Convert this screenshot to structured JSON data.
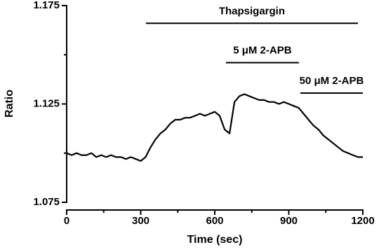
{
  "chart_data": {
    "type": "line",
    "xlabel": "Time (sec)",
    "ylabel": "Ratio",
    "x": [
      0,
      20,
      40,
      60,
      80,
      100,
      120,
      140,
      160,
      180,
      200,
      220,
      240,
      260,
      280,
      300,
      320,
      340,
      360,
      380,
      400,
      420,
      440,
      460,
      480,
      500,
      520,
      540,
      560,
      580,
      600,
      620,
      640,
      660,
      680,
      700,
      720,
      740,
      760,
      780,
      800,
      820,
      840,
      860,
      880,
      900,
      920,
      940,
      960,
      980,
      1000,
      1020,
      1040,
      1060,
      1080,
      1100,
      1120,
      1140,
      1160,
      1180,
      1200
    ],
    "series": [
      {
        "name": "Ratio",
        "color": "#000000",
        "values": [
          1.1,
          1.099,
          1.1,
          1.099,
          1.099,
          1.1,
          1.098,
          1.099,
          1.098,
          1.099,
          1.098,
          1.098,
          1.097,
          1.098,
          1.097,
          1.096,
          1.098,
          1.103,
          1.107,
          1.11,
          1.112,
          1.115,
          1.117,
          1.117,
          1.118,
          1.118,
          1.119,
          1.12,
          1.119,
          1.12,
          1.121,
          1.119,
          1.112,
          1.11,
          1.126,
          1.129,
          1.13,
          1.129,
          1.128,
          1.127,
          1.127,
          1.126,
          1.126,
          1.125,
          1.126,
          1.125,
          1.124,
          1.123,
          1.12,
          1.117,
          1.114,
          1.112,
          1.109,
          1.107,
          1.105,
          1.103,
          1.101,
          1.1,
          1.099,
          1.098,
          1.098
        ]
      }
    ],
    "xlim": [
      0,
      1200
    ],
    "xticks": [
      0,
      300,
      600,
      900,
      1200
    ],
    "xminorticks": [
      150,
      450,
      750,
      1050
    ],
    "ylim": [
      1.075,
      1.175
    ],
    "yticks": [
      1.075,
      1.125,
      1.175
    ],
    "yminorticks": [
      1.1,
      1.15
    ],
    "annotations": [
      {
        "text": "Thapsigargin",
        "x": [
          321,
          1180
        ],
        "y": 1.166
      },
      {
        "text": "5 μM 2-APB",
        "x": [
          645,
          941
        ],
        "y": 1.146
      },
      {
        "text": "50 μM 2-APB",
        "x": [
          947,
          1200
        ],
        "y": 1.1305
      }
    ]
  }
}
